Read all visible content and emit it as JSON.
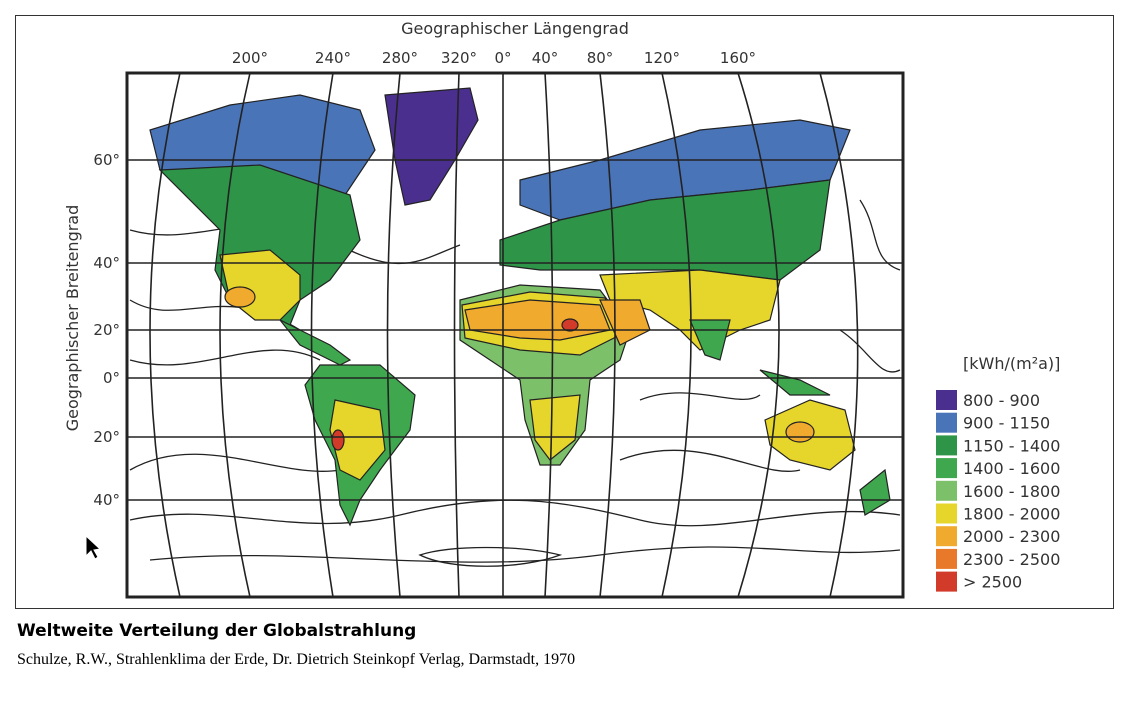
{
  "axes": {
    "x_title": "Geographischer Längengrad",
    "x_labels": [
      "200°",
      "240°",
      "280°",
      "320°",
      "0°",
      "40°",
      "80°",
      "120°",
      "160°"
    ],
    "y_title": "Geographischer Breitengrad",
    "y_labels": [
      "60°",
      "40°",
      "20°",
      "0°",
      "20°",
      "40°"
    ]
  },
  "legend": {
    "unit": "[kWh/(m²a)]",
    "items": [
      {
        "label": "800 - 900",
        "color": "#4b2f8f"
      },
      {
        "label": "900 - 1150",
        "color": "#4a74b8"
      },
      {
        "label": "1150 - 1400",
        "color": "#2e9548"
      },
      {
        "label": "1400 - 1600",
        "color": "#3fa84e"
      },
      {
        "label": "1600 - 1800",
        "color": "#7dc06a"
      },
      {
        "label": "1800 - 2000",
        "color": "#e6d52a"
      },
      {
        "label": "2000 - 2300",
        "color": "#f0ab2e"
      },
      {
        "label": "2300 - 2500",
        "color": "#e8782a"
      },
      {
        "label": "> 2500",
        "color": "#d23a2a"
      }
    ]
  },
  "caption": {
    "title": "Weltweite Verteilung der Globalstrahlung",
    "source": "Schulze, R.W., Strahlenklima der Erde, Dr. Dietrich Steinkopf Verlag, Darmstadt, 1970"
  }
}
